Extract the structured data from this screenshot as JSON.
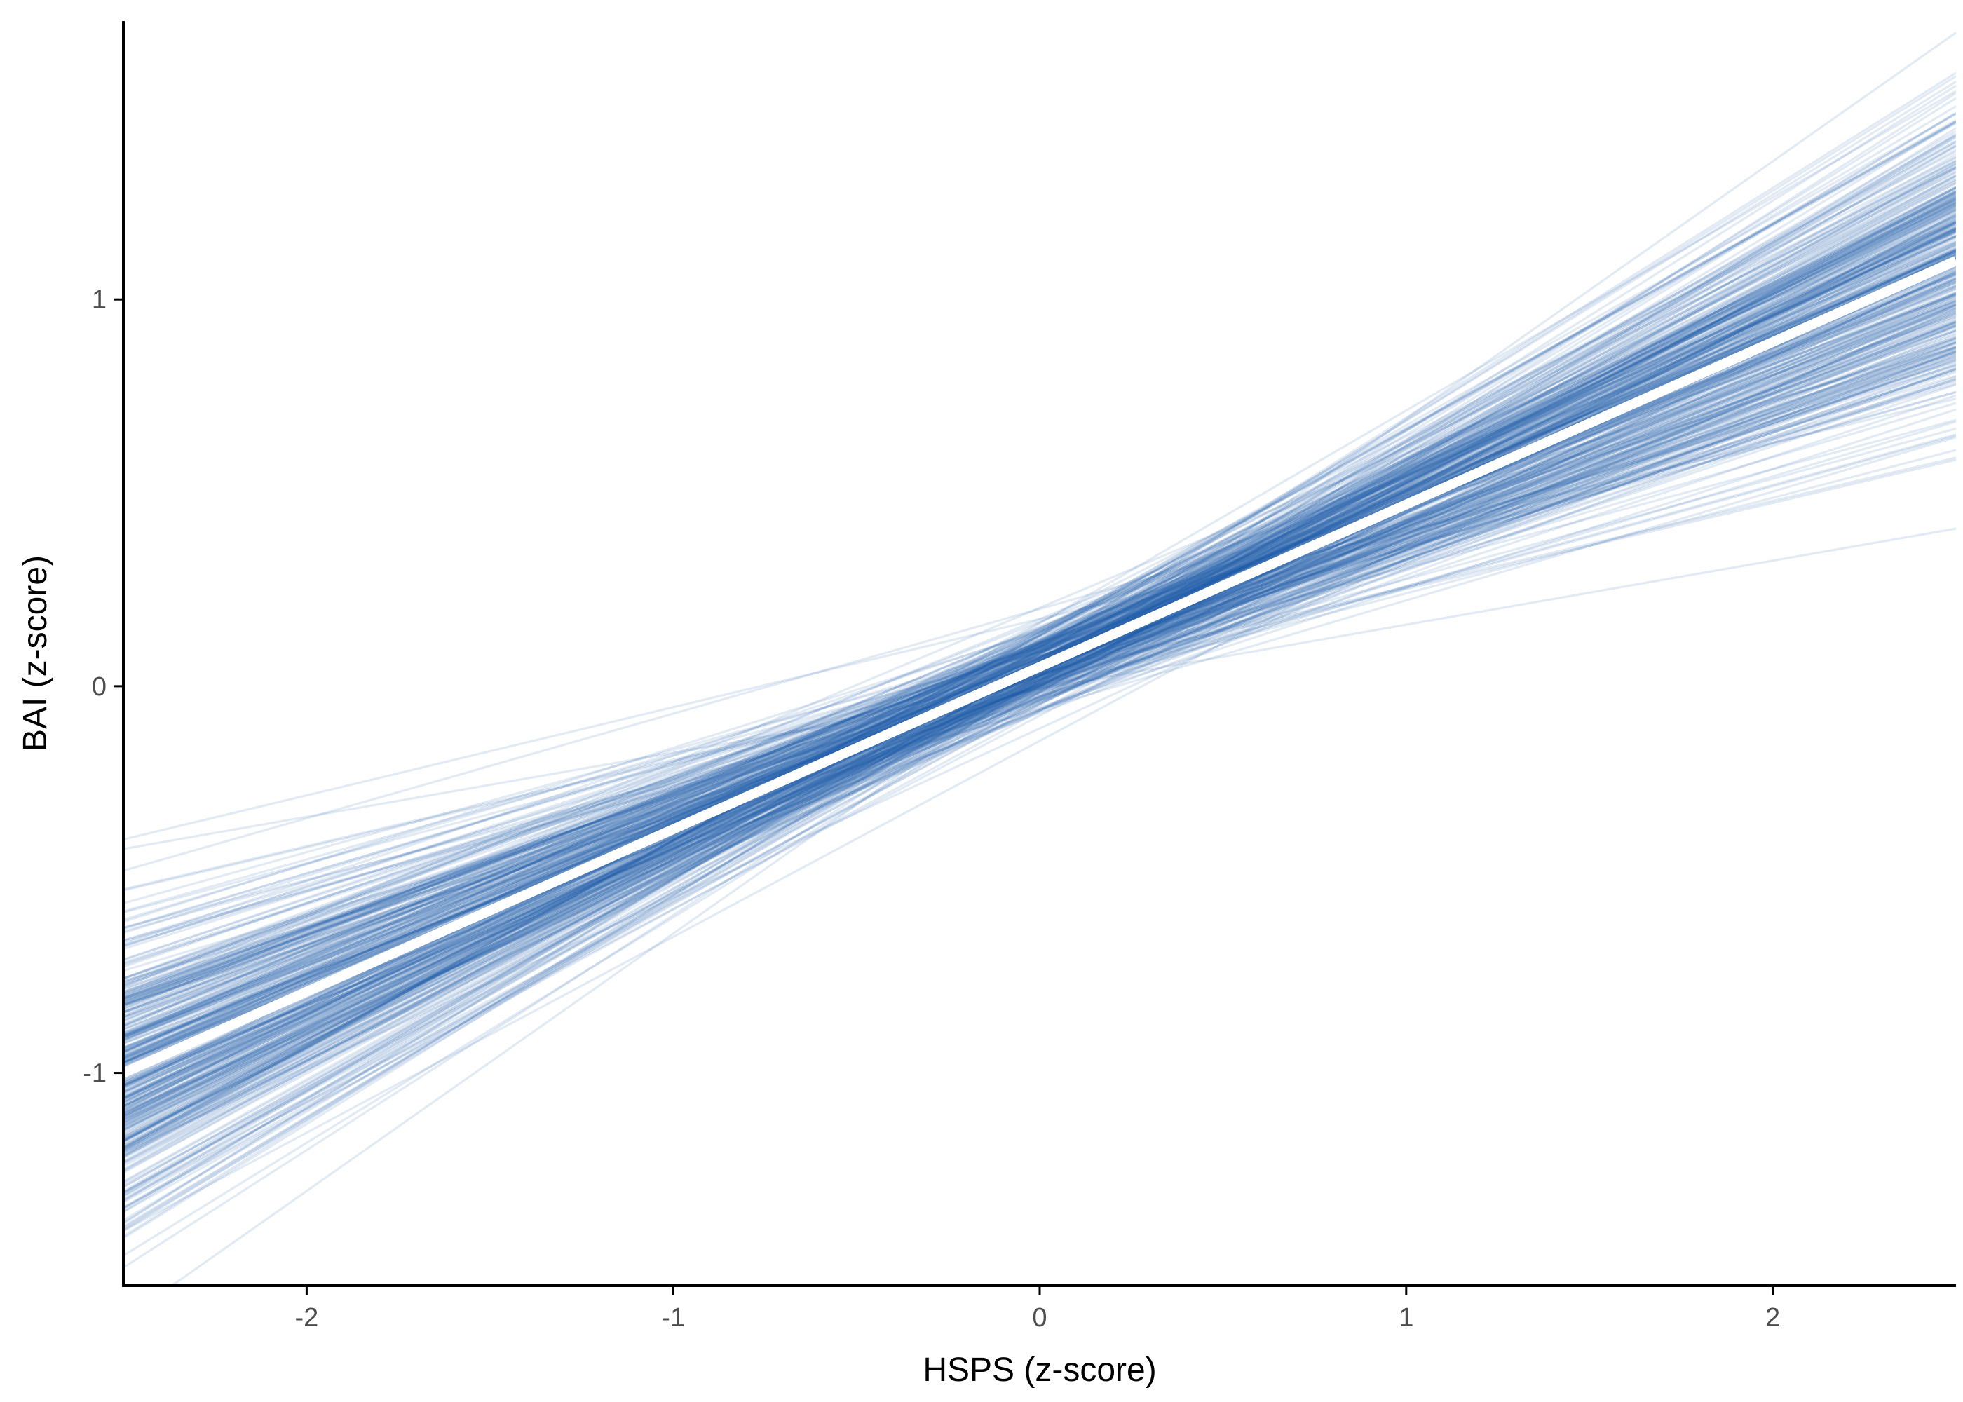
{
  "chart_data": {
    "type": "line",
    "xlabel": "HSPS (z-score)",
    "ylabel": "BAI (z-score)",
    "xlim": [
      -2.5,
      2.5
    ],
    "ylim": [
      -1.55,
      1.72
    ],
    "x_ticks": [
      -2,
      -1,
      0,
      1,
      2
    ],
    "y_ticks": [
      -1,
      0,
      1
    ],
    "x_tick_labels": [
      "-2",
      "-1",
      "0",
      "1",
      "2"
    ],
    "y_tick_labels": [
      "-1",
      "0",
      "1"
    ],
    "grid": false,
    "legend": "none",
    "mean_line": {
      "intercept": 0.05,
      "slope": 0.42,
      "color": "#ffffff"
    },
    "posterior_draws": {
      "count": 400,
      "intercept_mean": 0.05,
      "intercept_sd": 0.055,
      "slope_mean": 0.42,
      "slope_sd": 0.075,
      "color": "#1f5fa8",
      "opacity": 0.13
    }
  }
}
